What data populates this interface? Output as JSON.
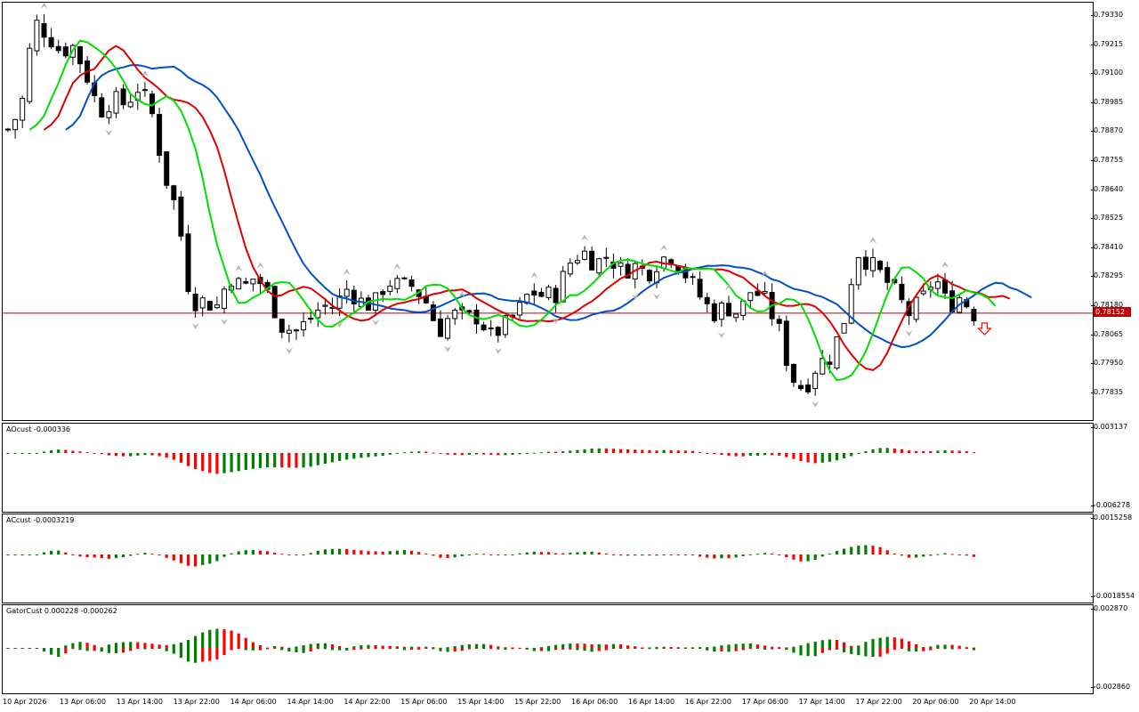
{
  "price_axis": {
    "ticks": [
      "0.79330",
      "0.79215",
      "0.79100",
      "0.78985",
      "0.78870",
      "0.78755",
      "0.78640",
      "0.78525",
      "0.78410",
      "0.78295",
      "0.78180",
      "0.78065",
      "0.77950",
      "0.77835"
    ],
    "current_price_label": "0.78152"
  },
  "x_axis": {
    "labels": [
      "10 Apr 2026",
      "13 Apr 06:00",
      "13 Apr 14:00",
      "13 Apr 22:00",
      "14 Apr 06:00",
      "14 Apr 14:00",
      "14 Apr 22:00",
      "15 Apr 06:00",
      "15 Apr 14:00",
      "15 Apr 22:00",
      "16 Apr 06:00",
      "16 Apr 14:00",
      "16 Apr 22:00",
      "17 Apr 06:00",
      "17 Apr 14:00",
      "17 Apr 22:00",
      "20 Apr 06:00",
      "20 Apr 14:00"
    ]
  },
  "indicators": {
    "ao": {
      "label": "AOcust -0.000336",
      "axis_top": "0.003137",
      "axis_bottom": "-0.006278"
    },
    "ac": {
      "label": "ACcust -0.0003219",
      "axis_top": "0.0015258",
      "axis_bottom": "-0.0018554"
    },
    "gator": {
      "label": "GatorCust 0.000228 -0.000262",
      "axis_top": "0.002870",
      "axis_bottom": "-0.002860"
    }
  },
  "colors": {
    "up": "#008000",
    "down": "#ff0000",
    "jaw": "#0050c8",
    "teeth": "#e00000",
    "lips": "#00e000",
    "price_line": "#c40000"
  },
  "chart_data": {
    "type": "candlestick",
    "price_close_path": [
      0.7888,
      0.7896,
      0.7931,
      0.7926,
      0.7919,
      0.7921,
      0.791,
      0.7895,
      0.79,
      0.7898,
      0.7905,
      0.7895,
      0.787,
      0.7855,
      0.782,
      0.782,
      0.7818,
      0.783,
      0.7825,
      0.783,
      0.7822,
      0.781,
      0.7808,
      0.7812,
      0.7818,
      0.7818,
      0.7825,
      0.782,
      0.7818,
      0.7828,
      0.7826,
      0.7826,
      0.782,
      0.7808,
      0.7815,
      0.7813,
      0.7814,
      0.7806,
      0.781,
      0.7815,
      0.7824,
      0.7822,
      0.7823,
      0.7835,
      0.784,
      0.7835,
      0.7838,
      0.7832,
      0.7834,
      0.7831,
      0.7837,
      0.7838,
      0.783,
      0.7822,
      0.7815,
      0.7818,
      0.7815,
      0.7825,
      0.782,
      0.781,
      0.779,
      0.7785,
      0.7795,
      0.7798,
      0.7811,
      0.784,
      0.7835,
      0.783,
      0.7823,
      0.7815,
      0.782,
      0.783,
      0.7818,
      0.7822,
      0.7815
    ]
  }
}
